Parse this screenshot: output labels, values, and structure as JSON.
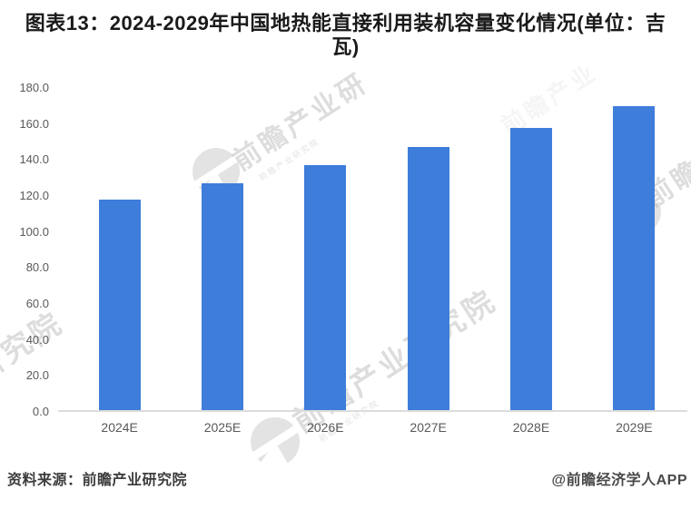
{
  "chart_data": {
    "type": "bar",
    "title": "图表13：2024-2029年中国地热能直接利用装机容量变化情况(单位：吉瓦)",
    "categories": [
      "2024E",
      "2025E",
      "2026E",
      "2027E",
      "2028E",
      "2029E"
    ],
    "values": [
      118,
      127,
      137,
      147,
      158,
      170
    ],
    "unit": "吉瓦",
    "xlabel": "",
    "ylabel": "",
    "ylim": [
      0,
      180
    ],
    "ytick_interval": 20,
    "ytick_labels": [
      "180.0",
      "160.0",
      "140.0",
      "120.0",
      "100.0",
      "80.0",
      "60.0",
      "40.0",
      "20.0",
      "0.0"
    ],
    "grid": false,
    "legend": null,
    "bar_color": "#3E7DDA"
  },
  "footer": {
    "source": "资料来源：前瞻产业研究院",
    "credit": "@前瞻经济学人APP"
  },
  "watermarks": {
    "brand": "前瞻产业研究院",
    "fragment_top": "前瞻产业研",
    "fragment_top_right": "前瞻产业",
    "fragment_right": "前瞻",
    "fragment_left": "研究院"
  },
  "colors": {
    "bar": "#3E7DDA",
    "axis_line": "#DCDCDC",
    "axis_text": "#595959",
    "title_text": "#1A1A1A",
    "footer_text": "#3D3D3D",
    "watermark": "#BDBDBD"
  }
}
